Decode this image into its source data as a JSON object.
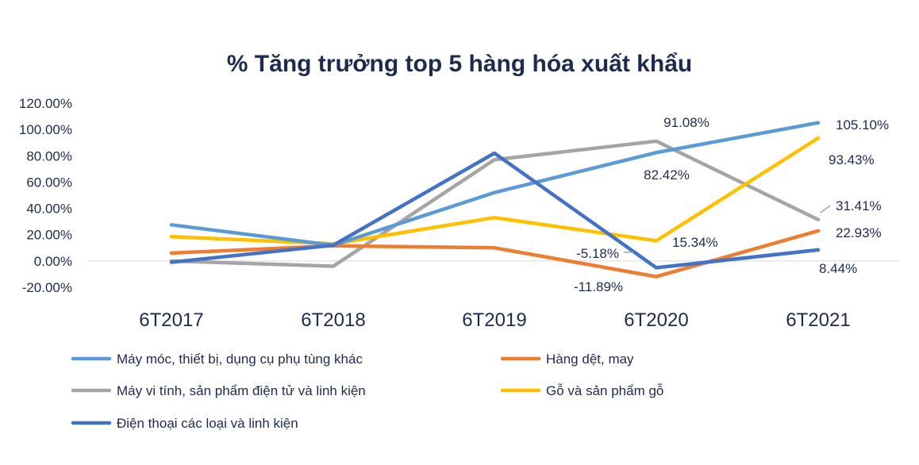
{
  "chart_data": {
    "type": "line",
    "title": "% Tăng trưởng top 5 hàng hóa xuất khẩu",
    "categories": [
      "6T2017",
      "6T2018",
      "6T2019",
      "6T2020",
      "6T2021"
    ],
    "ylim": [
      -20,
      120
    ],
    "yticks": [
      "-20.00%",
      "0.00%",
      "20.00%",
      "40.00%",
      "60.00%",
      "80.00%",
      "100.00%",
      "120.00%"
    ],
    "ytick_values": [
      -20,
      0,
      20,
      40,
      60,
      80,
      100,
      120
    ],
    "grid": "zero-line only",
    "legend_position": "bottom",
    "series": [
      {
        "name": "Máy móc, thiết bị, dụng cụ phụ tùng khác",
        "color": "#5b9bd5",
        "values": [
          27.5,
          12,
          52,
          82.42,
          105.1
        ]
      },
      {
        "name": "Hàng dệt, may",
        "color": "#ed7d31",
        "values": [
          6,
          11.5,
          10,
          -11.89,
          22.93
        ]
      },
      {
        "name": "Máy vi tính, sản phẩm điện tử và linh kiện",
        "color": "#a5a5a5",
        "values": [
          0,
          -4,
          77,
          91.08,
          31.41
        ]
      },
      {
        "name": "Gỗ và sản phẩm gỗ",
        "color": "#ffc000",
        "values": [
          18.5,
          13,
          33,
          15.34,
          93.43
        ]
      },
      {
        "name": "Điện thoại các loại và linh kiện",
        "color": "#4472c4",
        "values": [
          -1,
          12,
          82,
          -5.18,
          8.44
        ]
      }
    ],
    "data_labels": [
      {
        "series": 2,
        "point": 3,
        "text": "91.08%"
      },
      {
        "series": 0,
        "point": 3,
        "text": "82.42%"
      },
      {
        "series": 3,
        "point": 3,
        "text": "15.34%"
      },
      {
        "series": 4,
        "point": 3,
        "text": "-5.18%"
      },
      {
        "series": 1,
        "point": 3,
        "text": "-11.89%"
      },
      {
        "series": 0,
        "point": 4,
        "text": "105.10%"
      },
      {
        "series": 3,
        "point": 4,
        "text": "93.43%"
      },
      {
        "series": 2,
        "point": 4,
        "text": "31.41%"
      },
      {
        "series": 1,
        "point": 4,
        "text": "22.93%"
      },
      {
        "series": 4,
        "point": 4,
        "text": "8.44%"
      }
    ]
  }
}
